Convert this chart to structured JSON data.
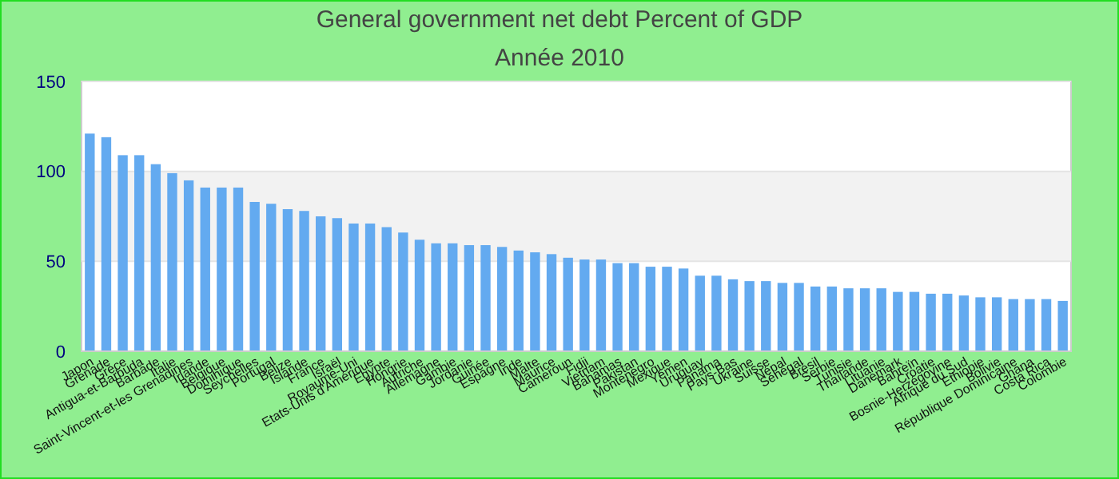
{
  "chart_data": {
    "type": "bar",
    "title": "General government net debt  Percent of GDP",
    "subtitle": "Année 2010",
    "categories": [
      "Japon",
      "Grenade",
      "Grèce",
      "Antigua-et-Barbuda",
      "Barbade",
      "Italie",
      "Saint-Vincent-et-les Grenadines",
      "Irlande",
      "Belgique",
      "Dominique",
      "Seychelles",
      "Portugal",
      "Belize",
      "Islande",
      "France",
      "Israël",
      "Royaume-Uni",
      "Etats-Unis d'Amérique",
      "Egypte",
      "Hongrie",
      "Autriche",
      "Allemagne",
      "Gambie",
      "Jordanie",
      "Guinée",
      "Espagne",
      "Inde",
      "Malte",
      "Maurice",
      "Cameroun",
      "Fidji",
      "Vietnam",
      "Bahamas",
      "Pakistan",
      "Montenegro",
      "Mexique",
      "Yémen",
      "Uruguay",
      "Panama",
      "Pays-Bas",
      "Ukraine",
      "Suisse",
      "Népal",
      "Sénégal",
      "Brésil",
      "Serbie",
      "Tunisie",
      "Thaïlande",
      "Lituanie",
      "Danemark",
      "Bahreïn",
      "Croatie",
      "Bosnie-Herzégovine",
      "Afrique du Sud",
      "Ethiopie",
      "Bolivie",
      "République Dominicaine",
      "Ghana",
      "Costa Rica",
      "Colombie"
    ],
    "values": [
      121,
      119,
      109,
      109,
      104,
      99,
      95,
      91,
      91,
      91,
      83,
      82,
      79,
      78,
      75,
      74,
      71,
      71,
      69,
      66,
      62,
      60,
      60,
      59,
      59,
      58,
      56,
      55,
      54,
      52,
      51,
      51,
      49,
      49,
      47,
      47,
      46,
      42,
      42,
      40,
      39,
      39,
      38,
      38,
      36,
      36,
      35,
      35,
      35,
      33,
      33,
      32,
      32,
      31,
      30,
      30,
      29,
      29,
      29,
      28
    ],
    "color": "#63aaf0",
    "ylim": [
      0,
      150
    ],
    "yticks": [
      0,
      50,
      100,
      150
    ],
    "grid": "y"
  }
}
